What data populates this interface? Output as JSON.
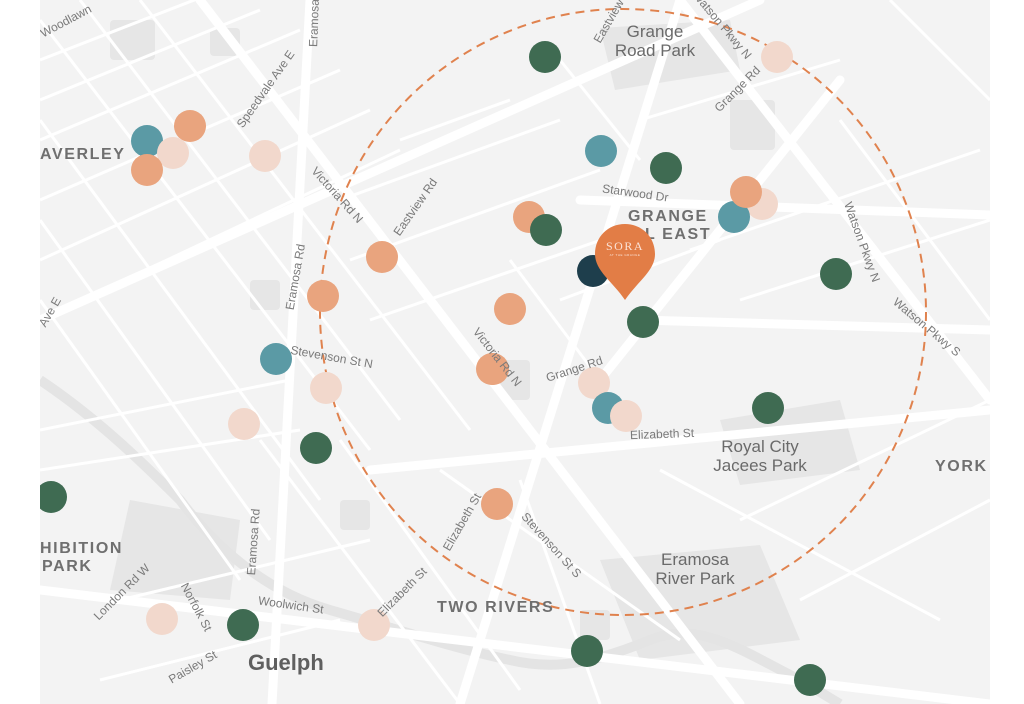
{
  "map": {
    "city_label": "Guelph",
    "areas": [
      {
        "name": "waverley-label",
        "text": "AVERLEY"
      },
      {
        "name": "grange-hill-east-line1",
        "text": "GRANGE"
      },
      {
        "name": "grange-hill-east-line2",
        "text": "L EAST"
      },
      {
        "name": "york-label",
        "text": "YORK"
      },
      {
        "name": "exhibition-park-line1",
        "text": "HIBITION"
      },
      {
        "name": "exhibition-park-line2",
        "text": "PARK"
      },
      {
        "name": "two-rivers-label",
        "text": "TWO RIVERS"
      }
    ],
    "parks": [
      {
        "name": "grange-road-park-label",
        "line1": "Grange",
        "line2": "Road Park"
      },
      {
        "name": "royal-city-jaycees-park-label",
        "line1": "Royal City",
        "line2": "Jacees Park"
      },
      {
        "name": "eramosa-river-park-label",
        "line1": "Eramosa",
        "line2": "River Park"
      }
    ],
    "streets": [
      "Woodlawn",
      "Eramosa",
      "Speedvale Ave E",
      "Eastview Rd",
      "Grange Rd",
      "Watson Pkwy N",
      "Victoria Rd N",
      "Eastview Rd",
      "Starwood Dr",
      "Watson Pkwy N",
      "Watson Pkwy S",
      "Ave E",
      "Eramosa Rd",
      "Stevenson St N",
      "Victoria Rd N",
      "Grange Rd",
      "Elizabeth St",
      "Elizabeth St",
      "Stevenson St S",
      "Eramosa Rd",
      "London Rd W",
      "Norfolk St",
      "Woolwich St",
      "Elizabeth St",
      "Paisley St"
    ],
    "marker": {
      "brand": "SORA",
      "subtitle": "AT THE GRANGE",
      "color": "#e27d46"
    },
    "radius_ring_color": "#e0824e",
    "colors": {
      "dark_green": "#3f6b52",
      "teal": "#5b9aa5",
      "orange": "#e9a47e",
      "light_pink": "#f2d8cc",
      "navy": "#1e3e4c"
    },
    "pois": [
      {
        "cat": "dark_green"
      },
      {
        "cat": "light_pink"
      },
      {
        "cat": "teal"
      },
      {
        "cat": "orange"
      },
      {
        "cat": "light_pink"
      },
      {
        "cat": "orange"
      },
      {
        "cat": "light_pink"
      },
      {
        "cat": "teal"
      },
      {
        "cat": "dark_green"
      },
      {
        "cat": "orange"
      },
      {
        "cat": "light_pink"
      },
      {
        "cat": "teal"
      },
      {
        "cat": "orange"
      },
      {
        "cat": "dark_green"
      },
      {
        "cat": "orange"
      },
      {
        "cat": "orange"
      },
      {
        "cat": "navy"
      },
      {
        "cat": "dark_green"
      },
      {
        "cat": "orange"
      },
      {
        "cat": "dark_green"
      },
      {
        "cat": "orange"
      },
      {
        "cat": "orange"
      },
      {
        "cat": "teal"
      },
      {
        "cat": "light_pink"
      },
      {
        "cat": "light_pink"
      },
      {
        "cat": "dark_green"
      },
      {
        "cat": "teal"
      },
      {
        "cat": "light_pink"
      },
      {
        "cat": "dark_green"
      },
      {
        "cat": "light_pink"
      },
      {
        "cat": "dark_green"
      },
      {
        "cat": "orange"
      },
      {
        "cat": "light_pink"
      },
      {
        "cat": "dark_green"
      },
      {
        "cat": "light_pink"
      },
      {
        "cat": "dark_green"
      },
      {
        "cat": "dark_green"
      }
    ]
  }
}
